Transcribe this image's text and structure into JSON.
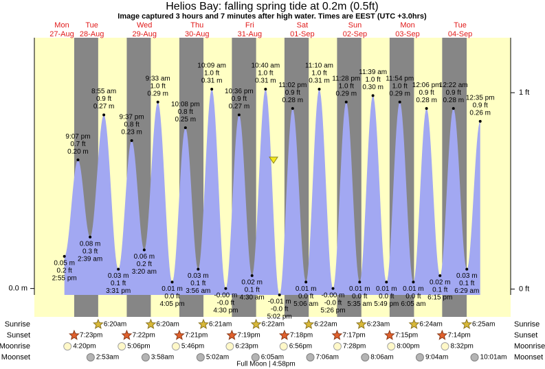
{
  "title": "Helios Bay: falling  spring tide at 0.2m (0.5ft)",
  "subtitle": "Image captured 3 hours and 7 minutes after high water. Times are EEST (UTC +3.0hrs)",
  "axis": {
    "ylim": [
      -0.01,
      0.39
    ],
    "y2lim": [
      -0.03,
      1.28
    ],
    "left_ticks": [
      {
        "value": 0,
        "label": "0.0 m"
      }
    ],
    "right_ticks": [
      {
        "value": 0,
        "label": "0 ft"
      },
      {
        "value": 1,
        "label": "1 ft"
      }
    ]
  },
  "row_labels": [
    "Sunrise",
    "Sunset",
    "Moonrise",
    "Moonset"
  ],
  "days": [
    {
      "dow": "Mon",
      "date": "27-Aug",
      "sunrise": null,
      "sunset": "7:23pm",
      "moonrise": "4:20pm",
      "moonset": null,
      "tides": [
        {
          "time": "2:55 pm",
          "height": {
            "value": 0.05,
            "label": "0.05 m"
          },
          "feet": "0.2 ft"
        },
        {
          "time": "9:07 pm",
          "height": {
            "value": 0.2,
            "label": "0.20 m"
          },
          "feet": "0.7 ft"
        }
      ]
    },
    {
      "dow": "Tue",
      "date": "28-Aug",
      "sunrise": "6:20am",
      "sunset": "7:22pm",
      "moonrise": "5:06pm",
      "moonset": "2:53am",
      "tides": [
        {
          "time": "2:39 am",
          "height": {
            "value": 0.08,
            "label": "0.08 m"
          },
          "feet": "0.3 ft"
        },
        {
          "time": "8:55 am",
          "height": {
            "value": 0.27,
            "label": "0.27 m"
          },
          "feet": "0.9 ft"
        },
        {
          "time": "3:31 pm",
          "height": {
            "value": 0.03,
            "label": "0.03 m"
          },
          "feet": "0.1 ft"
        },
        {
          "time": "9:37 pm",
          "height": {
            "value": 0.23,
            "label": "0.23 m"
          },
          "feet": "0.8 ft"
        }
      ]
    },
    {
      "dow": "Wed",
      "date": "29-Aug",
      "sunrise": "6:20am",
      "sunset": "7:21pm",
      "moonrise": "5:46pm",
      "moonset": "3:58am",
      "tides": [
        {
          "time": "3:20 am",
          "height": {
            "value": 0.06,
            "label": "0.06 m"
          },
          "feet": "0.2 ft"
        },
        {
          "time": "9:33 am",
          "height": {
            "value": 0.29,
            "label": "0.29 m"
          },
          "feet": "1.0 ft"
        },
        {
          "time": "4:05 pm",
          "height": {
            "value": 0.01,
            "label": "0.01 m"
          },
          "feet": "0.0 ft"
        },
        {
          "time": "10:08 pm",
          "height": {
            "value": 0.25,
            "label": "0.25 m"
          },
          "feet": "0.8 ft"
        }
      ]
    },
    {
      "dow": "Thu",
      "date": "30-Aug",
      "sunrise": "6:21am",
      "sunset": "7:19pm",
      "moonrise": "6:23pm",
      "moonset": "5:02am",
      "tides": [
        {
          "time": "3:56 am",
          "height": {
            "value": 0.03,
            "label": "0.03 m"
          },
          "feet": "0.1 ft"
        },
        {
          "time": "10:09 am",
          "height": {
            "value": 0.31,
            "label": "0.31 m"
          },
          "feet": "1.0 ft"
        },
        {
          "time": "4:30 pm",
          "height": {
            "value": -0.0,
            "label": "-0.00 m"
          },
          "feet": "-0.0 ft"
        },
        {
          "time": "10:36 pm",
          "height": {
            "value": 0.27,
            "label": "0.27 m"
          },
          "feet": "0.9 ft"
        }
      ]
    },
    {
      "dow": "Fri",
      "date": "31-Aug",
      "sunrise": "6:22am",
      "sunset": "7:18pm",
      "moonrise": "6:56pm",
      "moonset": "6:05am",
      "tides": [
        {
          "time": "4:30 am",
          "height": {
            "value": 0.02,
            "label": "0.02 m"
          },
          "feet": "0.1 ft"
        },
        {
          "time": "10:40 am",
          "height": {
            "value": 0.31,
            "label": "0.31 m"
          },
          "feet": "1.0 ft"
        },
        {
          "time": "5:02 pm",
          "height": {
            "value": -0.01,
            "label": "-0.01 m"
          },
          "feet": "-0.0 ft"
        },
        {
          "time": "11:02 pm",
          "height": {
            "value": 0.28,
            "label": "0.28 m"
          },
          "feet": "0.9 ft"
        }
      ]
    },
    {
      "dow": "Sat",
      "date": "01-Sep",
      "sunrise": "6:22am",
      "sunset": "7:17pm",
      "moonrise": "7:28pm",
      "moonset": "7:06am",
      "tides": [
        {
          "time": "5:06 am",
          "height": {
            "value": 0.01,
            "label": "0.01 m"
          },
          "feet": "0.0 ft"
        },
        {
          "time": "11:10 am",
          "height": {
            "value": 0.31,
            "label": "0.31 m"
          },
          "feet": "1.0 ft"
        },
        {
          "time": "5:26 pm",
          "height": {
            "value": -0.0,
            "label": "-0.00 m"
          },
          "feet": "-0.0 ft"
        },
        {
          "time": "11:28 pm",
          "height": {
            "value": 0.29,
            "label": "0.29 m"
          },
          "feet": "1.0 ft"
        }
      ]
    },
    {
      "dow": "Sun",
      "date": "02-Sep",
      "sunrise": "6:23am",
      "sunset": "7:15pm",
      "moonrise": "8:00pm",
      "moonset": "8:06am",
      "tides": [
        {
          "time": "5:35 am",
          "height": {
            "value": 0.01,
            "label": "0.01 m"
          },
          "feet": "0.0 ft"
        },
        {
          "time": "11:39 am",
          "height": {
            "value": 0.3,
            "label": "0.30 m"
          },
          "feet": "1.0 ft"
        },
        {
          "time": "5:49 pm",
          "height": {
            "value": 0.01,
            "label": "0.01 m"
          },
          "feet": "0.0 ft"
        },
        {
          "time": "11:54 pm",
          "height": {
            "value": 0.29,
            "label": "0.29 m"
          },
          "feet": "1.0 ft"
        }
      ]
    },
    {
      "dow": "Mon",
      "date": "03-Sep",
      "sunrise": "6:24am",
      "sunset": "7:14pm",
      "moonrise": "8:32pm",
      "moonset": "9:04am",
      "tides": [
        {
          "time": "6:05 am",
          "height": {
            "value": 0.01,
            "label": "0.01 m"
          },
          "feet": "0.0 ft"
        },
        {
          "time": "12:06 pm",
          "height": {
            "value": 0.28,
            "label": "0.28 m"
          },
          "feet": "0.9 ft"
        },
        {
          "time": "6:15 pm",
          "height": {
            "value": 0.02,
            "label": "0.02 m"
          },
          "feet": "0.1 ft"
        }
      ]
    },
    {
      "dow": "Tue",
      "date": "04-Sep",
      "sunrise": "6:25am",
      "sunset": null,
      "moonrise": null,
      "moonset": "10:01am",
      "tides": [
        {
          "time": "12:22 am",
          "height": {
            "value": 0.28,
            "label": "0.28 m"
          },
          "feet": "0.9 ft"
        },
        {
          "time": "6:29 am",
          "height": {
            "value": 0.03,
            "label": "0.03 m"
          },
          "feet": "0.1 ft"
        },
        {
          "time": "12:35 pm",
          "height": {
            "value": 0.26,
            "label": "0.26 m"
          },
          "feet": "0.9 ft"
        }
      ]
    }
  ],
  "footer": "Full Moon | 4:58pm"
}
